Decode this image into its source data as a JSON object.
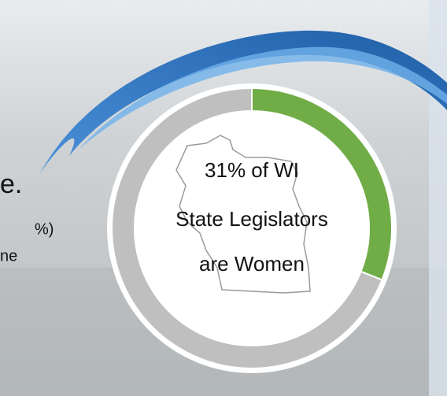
{
  "chart_data": {
    "type": "donut",
    "values": [
      31,
      69
    ],
    "colors": [
      "#70ad47",
      "#bfbfbf"
    ],
    "center_text": [
      "31% of WI",
      "State Legislators",
      "are Women"
    ]
  },
  "background_fragments": [
    "e.",
    "%)",
    "ne"
  ]
}
